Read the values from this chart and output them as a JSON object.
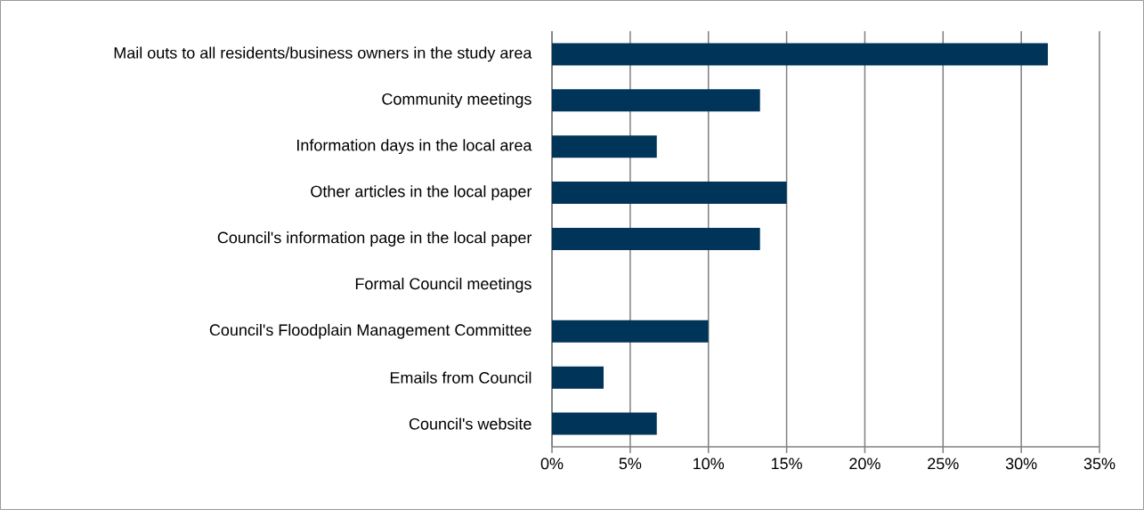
{
  "chart_data": {
    "type": "bar",
    "orientation": "horizontal",
    "categories": [
      "Mail outs to all residents/business owners in the study area",
      "Community meetings",
      "Information days in the local area",
      "Other articles in the local paper",
      "Council's information page in the local paper",
      "Formal Council meetings",
      "Council's Floodplain Management Committee",
      "Emails from Council",
      "Council's website"
    ],
    "values": [
      31.7,
      13.3,
      6.7,
      15,
      13.3,
      0,
      10,
      3.3,
      6.7
    ],
    "color": "#003459",
    "xlim": [
      0,
      35
    ],
    "xticks": [
      {
        "value": 0,
        "label": "0%"
      },
      {
        "value": 5,
        "label": "5%"
      },
      {
        "value": 10,
        "label": "10%"
      },
      {
        "value": 15,
        "label": "15%"
      },
      {
        "value": 20,
        "label": "20%"
      },
      {
        "value": 25,
        "label": "25%"
      },
      {
        "value": 30,
        "label": "30%"
      },
      {
        "value": 35,
        "label": "35%"
      }
    ],
    "grid": "x"
  }
}
